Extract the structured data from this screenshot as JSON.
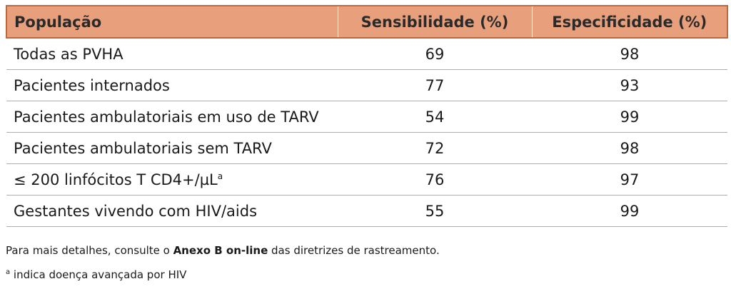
{
  "table": {
    "headers": [
      "População",
      "Sensibilidade (%)",
      "Especificidade (%)"
    ],
    "rows": [
      {
        "population": "Todas as PVHA",
        "population_sup": "",
        "sensitivity": "69",
        "specificity": "98"
      },
      {
        "population": "Pacientes internados",
        "population_sup": "",
        "sensitivity": "77",
        "specificity": "93"
      },
      {
        "population": "Pacientes ambulatoriais em uso de TARV",
        "population_sup": "",
        "sensitivity": "54",
        "specificity": "99"
      },
      {
        "population": "Pacientes ambulatoriais sem TARV",
        "population_sup": "",
        "sensitivity": "72",
        "specificity": "98"
      },
      {
        "population": "≤ 200 linfócitos T CD4+/µL",
        "population_sup": "a",
        "sensitivity": "76",
        "specificity": "97"
      },
      {
        "population": "Gestantes vivendo com HIV/aids",
        "population_sup": "",
        "sensitivity": "55",
        "specificity": "99"
      }
    ]
  },
  "notes": {
    "note1_prefix": "Para mais detalhes, consulte o ",
    "note1_bold": "Anexo B on-line",
    "note1_suffix": " das diretrizes de rastreamento.",
    "note2_sup": "a",
    "note2_text": " indica doença avançada por HIV"
  },
  "colors": {
    "header_bg": "#e8a07c",
    "header_border": "#c0673d",
    "row_divider": "#d9a185"
  }
}
